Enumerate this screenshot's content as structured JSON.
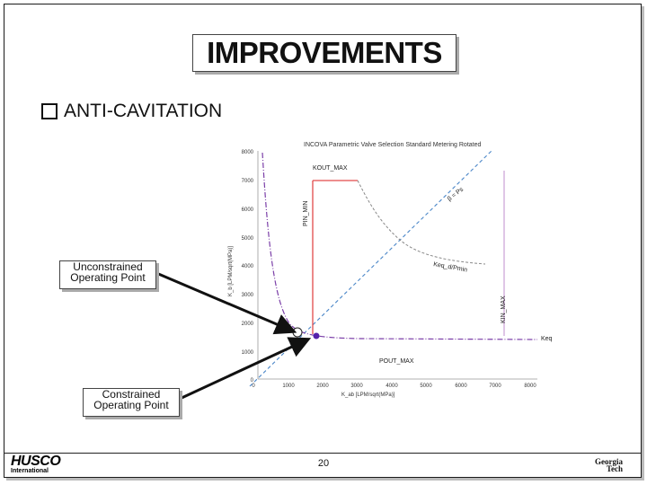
{
  "slide": {
    "title": "IMPROVEMENTS",
    "bullet": "ANTI-CAVITATION",
    "page_number": "20"
  },
  "callouts": {
    "unconstrained_line1": "Unconstrained",
    "unconstrained_line2": "Operating Point",
    "constrained_line1": "Constrained",
    "constrained_line2": "Operating Point"
  },
  "chart": {
    "title": "INCOVA Parametric Valve Selection Standard Metering Rotated",
    "ylabel": "K_b [LPM/sqrt(MPa)]",
    "xlabel": "K_ab [LPM/sqrt(MPa)]",
    "y_ticks": [
      "8000",
      "7000",
      "6000",
      "5000",
      "4000",
      "3000",
      "2000",
      "1000",
      "0"
    ],
    "x_ticks": [
      "0",
      "1000",
      "2000",
      "3000",
      "4000",
      "5000",
      "6000",
      "7000",
      "8000"
    ],
    "curve_labels": {
      "kout_max": "KOUT_MAX",
      "pin_min": "PIN_MIN",
      "kin_max": "KIN_MAX",
      "pout_max": "POUT_MAX",
      "keq": "Keq",
      "keq_ratio": "Keq_d/Pmin",
      "ratio": "β = Ps"
    }
  },
  "footer": {
    "left_logo": "HUSCO",
    "left_logo_sub": "International",
    "right_logo_line1": "Georgia",
    "right_logo_line2": "Tech"
  },
  "colors": {
    "red": "#e24a4a",
    "blue": "#4a86c8",
    "purple": "#7b3fa8",
    "pink": "#b070c0",
    "marker": "#5522aa"
  }
}
